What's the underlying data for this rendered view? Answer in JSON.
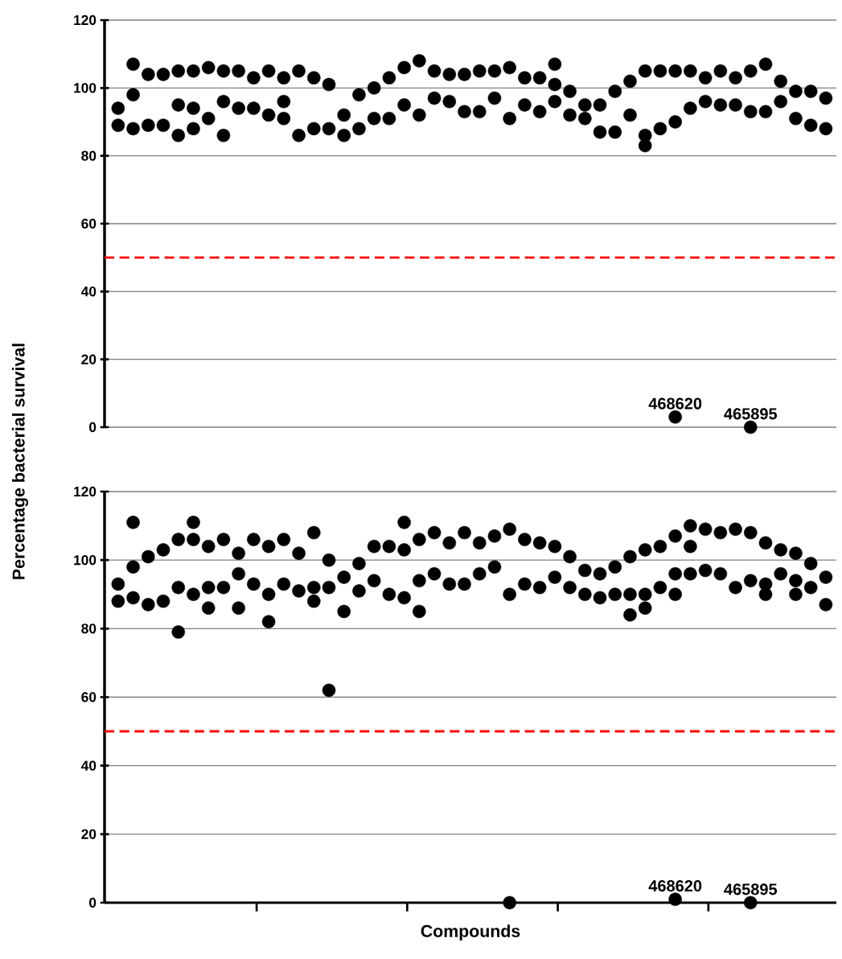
{
  "chart_data": [
    {
      "type": "scatter",
      "ylabel": "Percentage bacterial survival",
      "ylim": [
        0,
        120
      ],
      "yticks": [
        0,
        20,
        40,
        60,
        80,
        100,
        120
      ],
      "grid": "y",
      "marker": "circle",
      "tick_labels": "y",
      "categories": [
        null,
        null,
        null,
        null,
        null,
        null,
        null,
        null,
        null,
        null,
        null,
        null,
        null,
        null,
        null,
        null,
        null,
        null,
        null,
        null,
        null,
        null,
        null,
        null,
        null,
        null,
        null,
        null,
        null,
        null,
        null,
        null,
        null,
        null,
        null,
        null,
        null,
        null,
        null,
        null,
        null,
        null,
        null,
        null,
        null,
        null,
        null,
        null
      ],
      "series": [
        {
          "color": "#000000",
          "values": [
            94,
            98,
            104,
            104,
            105,
            105,
            106,
            105,
            105,
            103,
            105,
            103,
            105,
            103,
            101,
            92,
            98,
            100,
            103,
            106,
            108,
            105,
            104,
            104,
            105,
            105,
            106,
            103,
            103,
            101,
            99,
            95,
            95,
            99,
            102,
            105,
            105,
            105,
            105,
            103,
            105,
            103,
            105,
            107,
            102,
            99,
            99,
            97
          ]
        },
        {
          "color": "#000000",
          "values": [
            89,
            88,
            89,
            89,
            95,
            94,
            91,
            96,
            94,
            94,
            92,
            96,
            86,
            88,
            88,
            86,
            88,
            91,
            91,
            95,
            92,
            97,
            96,
            93,
            93,
            97,
            91,
            95,
            93,
            96,
            92,
            91,
            87,
            87,
            92,
            86,
            88,
            90,
            94,
            96,
            95,
            95,
            93,
            93,
            96,
            91,
            89,
            88
          ]
        },
        {
          "color": "#000000",
          "values": [
            null,
            107,
            null,
            null,
            86,
            88,
            null,
            86,
            null,
            null,
            null,
            91,
            null,
            null,
            null,
            null,
            null,
            null,
            null,
            null,
            null,
            null,
            null,
            null,
            null,
            null,
            null,
            null,
            null,
            107,
            null,
            null,
            null,
            null,
            null,
            83,
            null,
            null,
            null,
            null,
            null,
            null,
            null,
            null,
            null,
            null,
            null,
            null
          ]
        },
        {
          "color": "#000000",
          "values": [
            null,
            null,
            null,
            null,
            null,
            null,
            null,
            null,
            null,
            null,
            null,
            null,
            null,
            null,
            null,
            null,
            null,
            null,
            null,
            null,
            null,
            null,
            null,
            null,
            null,
            null,
            null,
            null,
            null,
            null,
            null,
            null,
            null,
            null,
            null,
            null,
            null,
            3,
            null,
            null,
            null,
            null,
            0,
            null,
            null,
            null,
            null,
            null
          ]
        }
      ],
      "annotations": [
        "468620",
        "465895"
      ],
      "ref_lines": [
        {
          "axis": "y",
          "value": 50,
          "color": "#ff0000",
          "line_style": "dashed"
        }
      ]
    },
    {
      "type": "scatter",
      "xlabel": "Compounds",
      "ylim": [
        0,
        120
      ],
      "yticks": [
        0,
        20,
        40,
        60,
        80,
        100,
        120
      ],
      "grid": "y",
      "marker": "circle",
      "tick_labels": "y",
      "categories": [
        null,
        null,
        null,
        null,
        null,
        null,
        null,
        null,
        null,
        null,
        null,
        null,
        null,
        null,
        null,
        null,
        null,
        null,
        null,
        null,
        null,
        null,
        null,
        null,
        null,
        null,
        null,
        null,
        null,
        null,
        null,
        null,
        null,
        null,
        null,
        null,
        null,
        null,
        null,
        null,
        null,
        null,
        null,
        null,
        null,
        null,
        null,
        null
      ],
      "series": [
        {
          "color": "#000000",
          "values": [
            93,
            98,
            101,
            103,
            106,
            106,
            104,
            106,
            102,
            106,
            104,
            106,
            102,
            108,
            100,
            95,
            99,
            104,
            104,
            103,
            106,
            108,
            105,
            108,
            105,
            107,
            109,
            106,
            105,
            104,
            101,
            97,
            96,
            98,
            101,
            103,
            104,
            107,
            104,
            109,
            108,
            109,
            108,
            105,
            103,
            102,
            99,
            95
          ]
        },
        {
          "color": "#000000",
          "values": [
            88,
            89,
            87,
            88,
            92,
            90,
            92,
            92,
            96,
            93,
            90,
            93,
            91,
            92,
            92,
            85,
            91,
            94,
            90,
            89,
            94,
            96,
            93,
            93,
            96,
            98,
            90,
            93,
            92,
            95,
            92,
            90,
            89,
            90,
            90,
            90,
            92,
            96,
            96,
            97,
            96,
            92,
            94,
            93,
            96,
            94,
            92,
            87
          ]
        },
        {
          "color": "#000000",
          "values": [
            null,
            111,
            null,
            null,
            79,
            111,
            86,
            null,
            86,
            null,
            82,
            null,
            null,
            88,
            62,
            null,
            null,
            null,
            null,
            111,
            85,
            null,
            null,
            null,
            null,
            null,
            0,
            null,
            null,
            null,
            null,
            null,
            null,
            null,
            84,
            86,
            null,
            90,
            110,
            null,
            null,
            null,
            null,
            90,
            null,
            90,
            null,
            null
          ]
        },
        {
          "color": "#000000",
          "values": [
            null,
            null,
            null,
            null,
            null,
            null,
            null,
            null,
            null,
            null,
            null,
            null,
            null,
            null,
            null,
            null,
            null,
            null,
            null,
            null,
            null,
            null,
            null,
            null,
            null,
            null,
            null,
            null,
            null,
            null,
            null,
            null,
            null,
            null,
            null,
            null,
            null,
            1,
            null,
            null,
            null,
            null,
            0,
            null,
            null,
            null,
            null,
            null
          ]
        }
      ],
      "annotations": [
        "468620",
        "465895"
      ],
      "ref_lines": [
        {
          "axis": "y",
          "value": 50,
          "color": "#ff0000",
          "line_style": "dashed"
        }
      ]
    }
  ]
}
